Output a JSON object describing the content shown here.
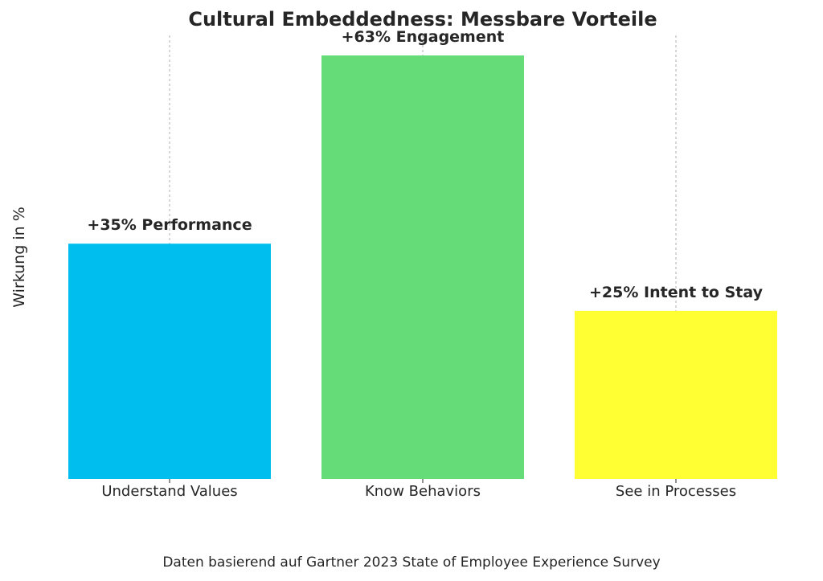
{
  "chart_data": {
    "type": "bar",
    "title": "Cultural Embeddedness: Messbare Vorteile",
    "xlabel": "",
    "ylabel": "Wirkung in %",
    "categories": [
      "Understand Values",
      "Know Behaviors",
      "See in Processes"
    ],
    "values": [
      35,
      63,
      25
    ],
    "data_labels": [
      "+35% Performance",
      "+63% Engagement",
      "+25% Intent to Stay"
    ],
    "colors": [
      "#00bfef",
      "#66dc78",
      "#ffff33"
    ],
    "ylim": [
      0,
      63
    ],
    "grid": "x-dashed",
    "y_ticks_visible": false
  },
  "footnote": "Daten basierend auf Gartner 2023 State of Employee Experience Survey"
}
